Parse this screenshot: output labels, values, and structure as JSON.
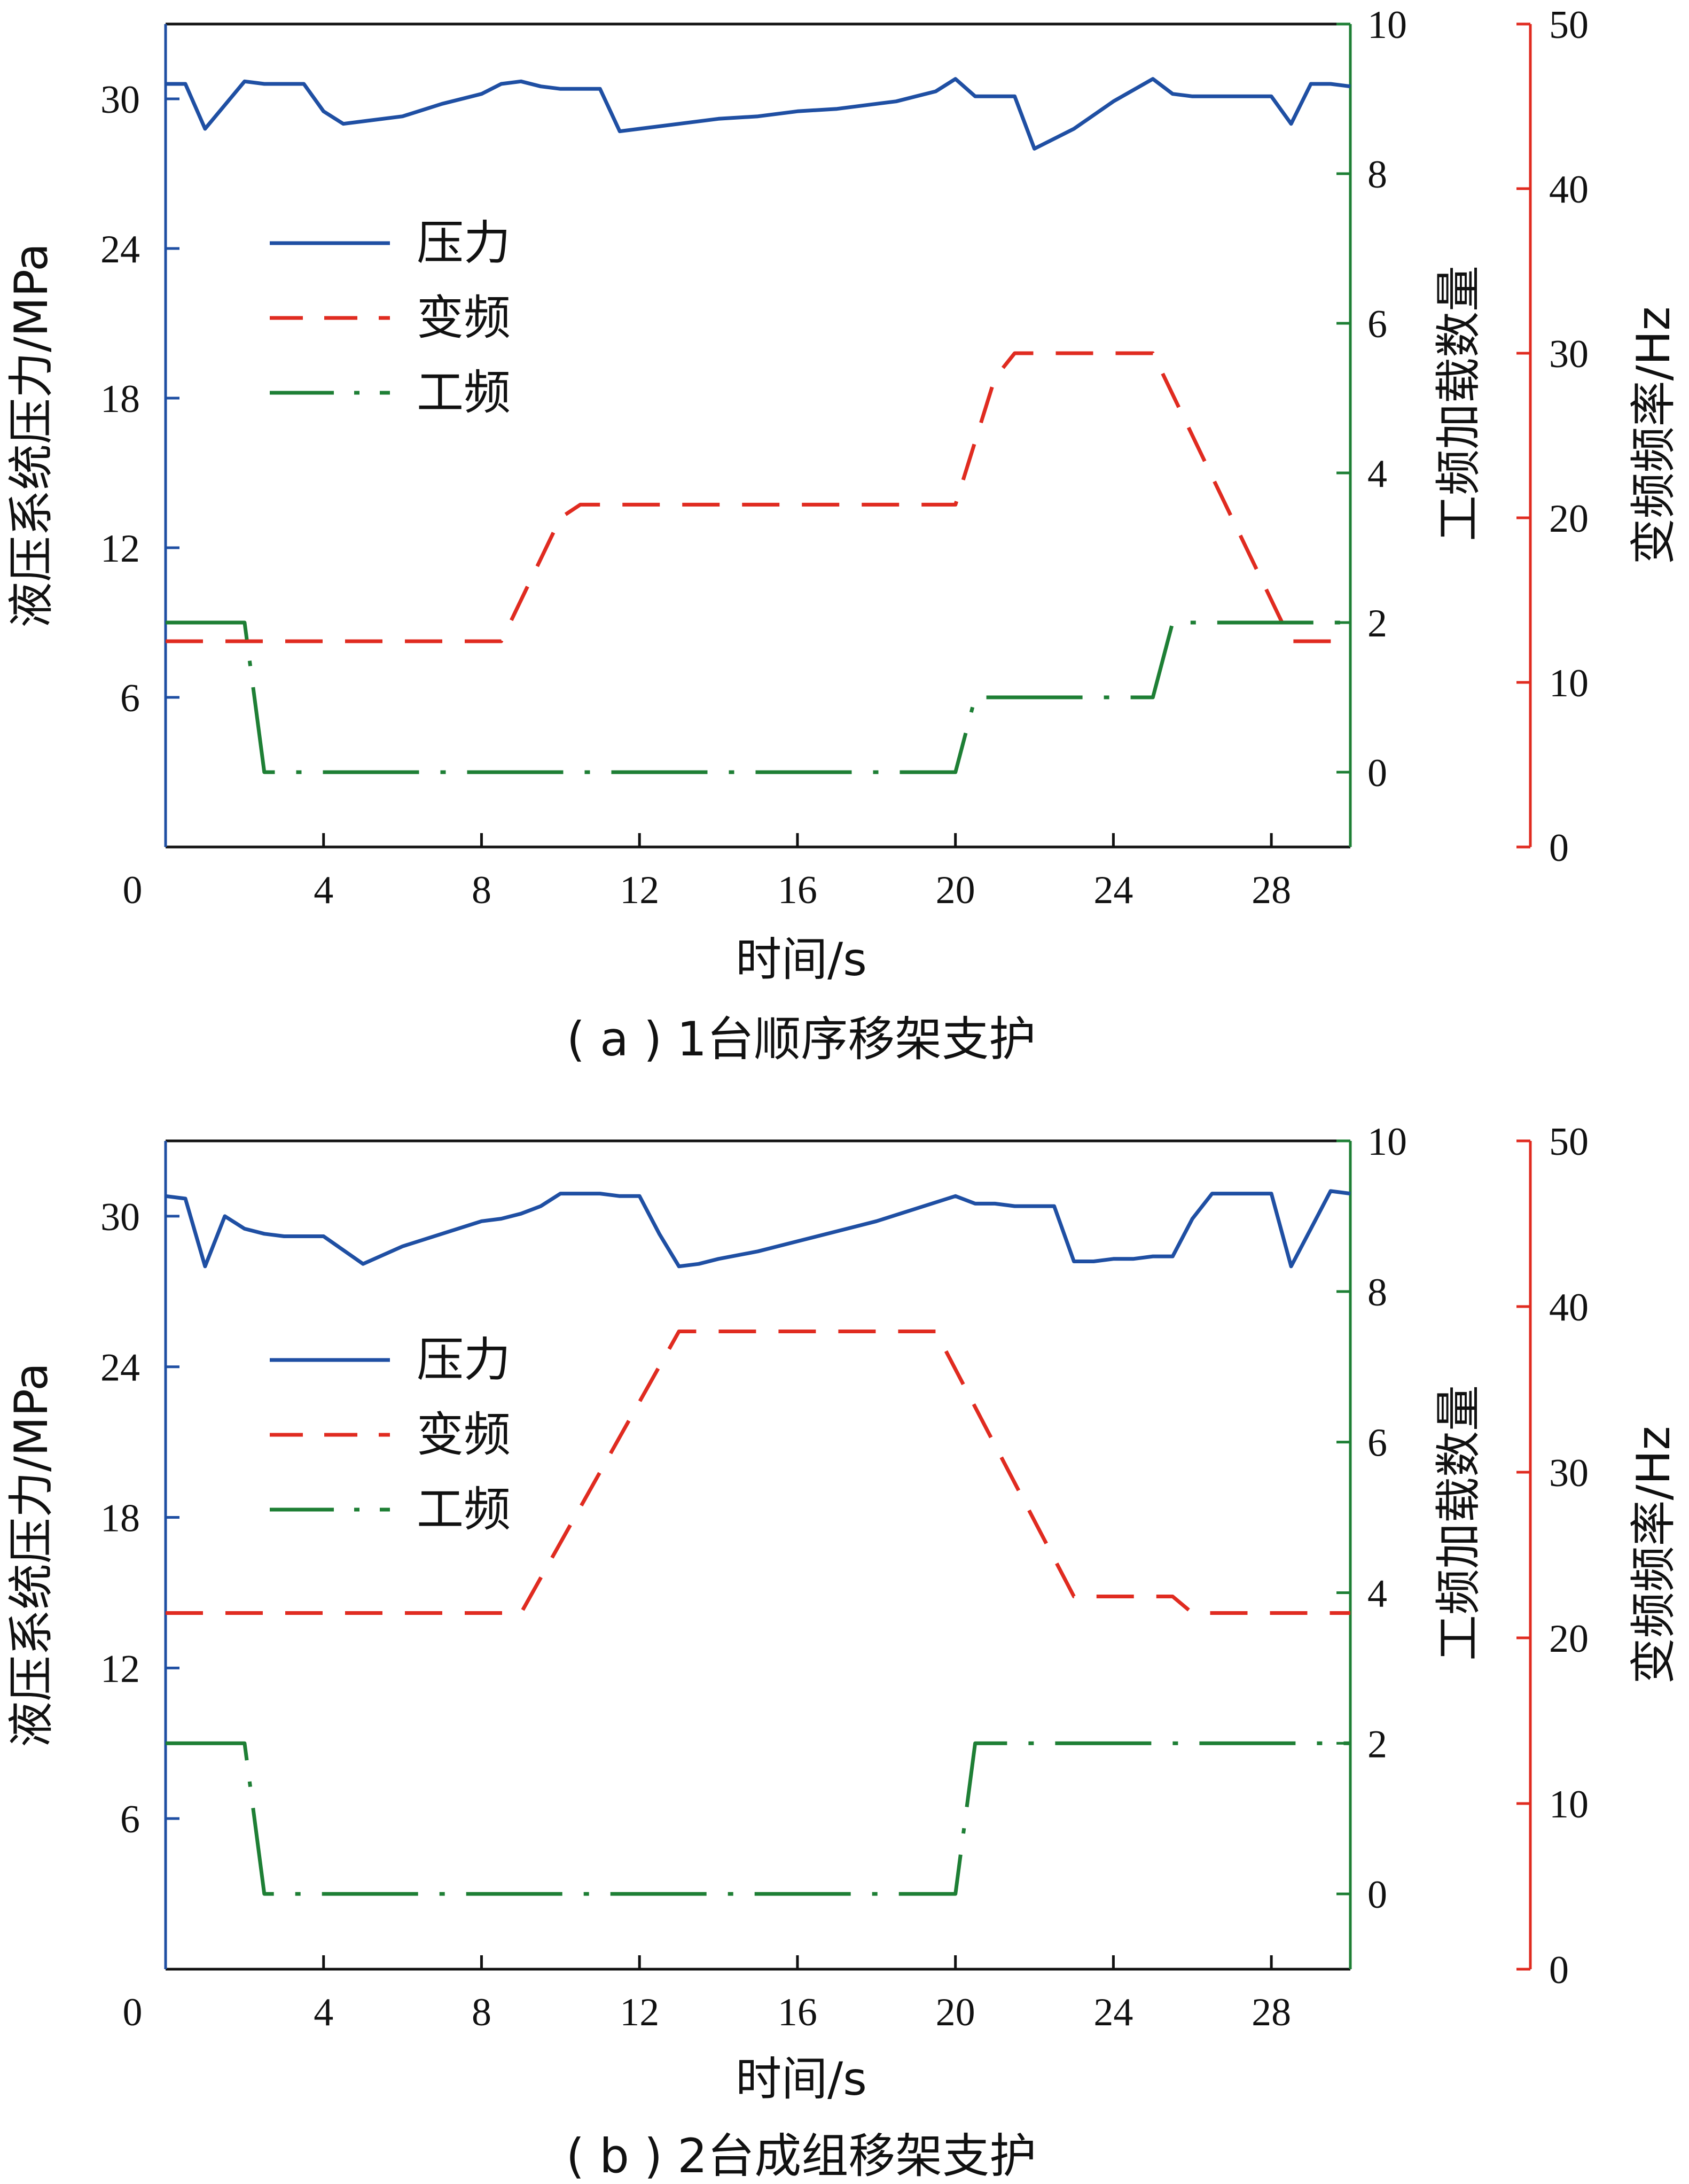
{
  "colors": {
    "pressure": "#1f4fa3",
    "vfd": "#e02b20",
    "line_freq": "#1e7f35",
    "frame": "#111111"
  },
  "chart_data": [
    {
      "type": "line",
      "caption": "( a ) 1台顺序移架支护",
      "xlabel": "时间/s",
      "ylabel_left": "液压系统压力/MPa",
      "ylabel_right1": "工频加载数量",
      "ylabel_right2": "变频频率/Hz",
      "xlim": [
        0,
        30
      ],
      "xticks": [
        0,
        4,
        8,
        12,
        16,
        20,
        24,
        28
      ],
      "ylim_left": [
        0,
        33
      ],
      "yticks_left": [
        6,
        12,
        18,
        24,
        30
      ],
      "ylim_right1": [
        -1,
        10
      ],
      "yticks_right1": [
        0,
        2,
        4,
        6,
        8,
        10
      ],
      "ylim_right2": [
        0,
        50
      ],
      "yticks_right2": [
        0,
        10,
        20,
        30,
        40,
        50
      ],
      "legend": [
        "压力",
        "变频",
        "工频"
      ],
      "legend_position": "upper-left",
      "series": [
        {
          "name": "压力",
          "axis": "left",
          "style": "solid",
          "x": [
            0,
            0.5,
            1,
            2,
            2.5,
            3,
            3.5,
            4,
            4.5,
            5,
            6,
            7,
            8,
            8.5,
            9,
            9.5,
            10,
            11,
            11.5,
            12,
            13,
            14,
            15,
            16,
            17,
            18,
            18.5,
            19,
            19.5,
            20,
            20.5,
            21.5,
            22,
            23,
            24,
            25,
            25.5,
            26,
            27,
            28,
            28.5,
            29,
            29.5,
            30
          ],
          "y": [
            30.6,
            30.6,
            28.8,
            30.7,
            30.6,
            30.6,
            30.6,
            29.5,
            29,
            29.1,
            29.3,
            29.8,
            30.2,
            30.6,
            30.7,
            30.5,
            30.4,
            30.4,
            28.7,
            28.8,
            29,
            29.2,
            29.3,
            29.5,
            29.6,
            29.8,
            29.9,
            30.1,
            30.3,
            30.8,
            30.1,
            30.1,
            28,
            28.8,
            29.9,
            30.8,
            30.2,
            30.1,
            30.1,
            30.1,
            29,
            30.6,
            30.6,
            30.5
          ]
        },
        {
          "name": "变频",
          "axis": "right2",
          "style": "dashed",
          "x": [
            0,
            8.5,
            10,
            10.5,
            20,
            21,
            21.5,
            25,
            28.5,
            30
          ],
          "y": [
            12.5,
            12.5,
            20,
            20.8,
            20.8,
            28.5,
            30,
            30,
            12.5,
            12.5
          ],
          "data_labels": []
        },
        {
          "name": "工频",
          "axis": "right1",
          "style": "dashdot",
          "x": [
            0,
            2,
            2.5,
            20,
            20.5,
            25,
            25.5,
            30
          ],
          "y": [
            2,
            2,
            0,
            0,
            1,
            1,
            2,
            2
          ]
        }
      ]
    },
    {
      "type": "line",
      "caption": "( b ) 2台成组移架支护",
      "xlabel": "时间/s",
      "ylabel_left": "液压系统压力/MPa",
      "ylabel_right1": "工频加载数量",
      "ylabel_right2": "变频频率/Hz",
      "xlim": [
        0,
        30
      ],
      "xticks": [
        0,
        4,
        8,
        12,
        16,
        20,
        24,
        28
      ],
      "ylim_left": [
        0,
        33
      ],
      "yticks_left": [
        6,
        12,
        18,
        24,
        30
      ],
      "ylim_right1": [
        -1,
        10
      ],
      "yticks_right1": [
        0,
        2,
        4,
        6,
        8,
        10
      ],
      "ylim_right2": [
        0,
        50
      ],
      "yticks_right2": [
        0,
        10,
        20,
        30,
        40,
        50
      ],
      "legend": [
        "压力",
        "变频",
        "工频"
      ],
      "legend_position": "upper-left",
      "series": [
        {
          "name": "压力",
          "axis": "left",
          "style": "solid",
          "x": [
            0,
            0.5,
            1,
            1.5,
            2,
            2.5,
            3,
            4,
            5,
            6,
            7,
            8,
            8.5,
            9,
            9.5,
            10,
            11,
            11.5,
            12,
            12.5,
            13,
            13.5,
            14,
            15,
            16,
            17,
            18,
            19,
            20,
            20.5,
            21,
            21.5,
            22,
            22.5,
            23,
            23.5,
            24,
            24.5,
            25,
            25.5,
            26,
            26.5,
            27,
            28,
            28.5,
            29,
            29.5,
            30
          ],
          "y": [
            30.8,
            30.7,
            28,
            30,
            29.5,
            29.3,
            29.2,
            29.2,
            28.1,
            28.8,
            29.3,
            29.8,
            29.9,
            30.1,
            30.4,
            30.9,
            30.9,
            30.8,
            30.8,
            29.3,
            28,
            28.1,
            28.3,
            28.6,
            29,
            29.4,
            29.8,
            30.3,
            30.8,
            30.5,
            30.5,
            30.4,
            30.4,
            30.4,
            28.2,
            28.2,
            28.3,
            28.3,
            28.4,
            28.4,
            29.9,
            30.9,
            30.9,
            30.9,
            28,
            29.5,
            31,
            30.9
          ]
        },
        {
          "name": "变频",
          "axis": "right2",
          "style": "dashed",
          "x": [
            0,
            9,
            13,
            19.5,
            23,
            25.5,
            26,
            30
          ],
          "y": [
            21.5,
            21.5,
            38.5,
            38.5,
            22.5,
            22.5,
            21.5,
            21.5
          ]
        },
        {
          "name": "工频",
          "axis": "right1",
          "style": "dashdot",
          "x": [
            0,
            2,
            2.5,
            20,
            20.5,
            30
          ],
          "y": [
            2,
            2,
            0,
            0,
            2,
            2
          ]
        }
      ]
    }
  ]
}
